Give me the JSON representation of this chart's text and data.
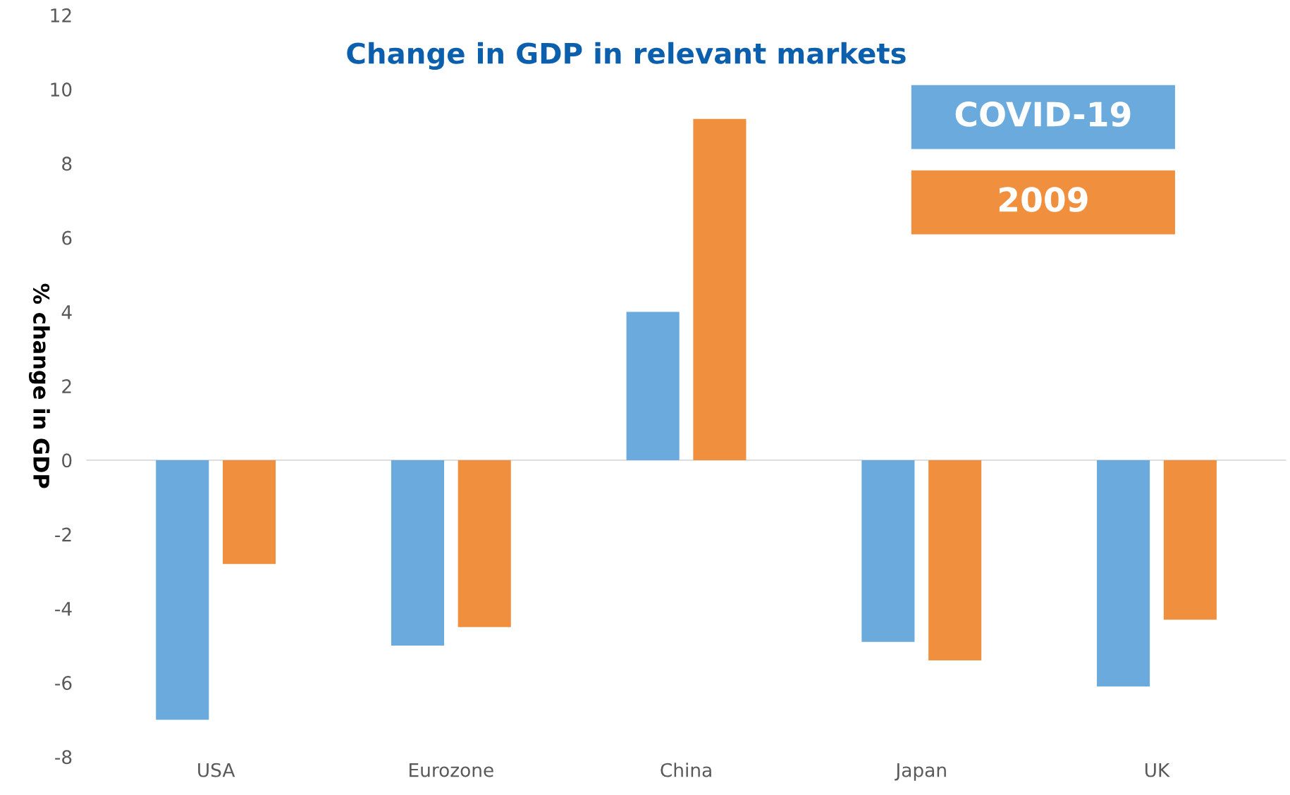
{
  "chart_data": {
    "type": "bar",
    "title": "Change in GDP in relevant markets",
    "ylabel": "% change in GDP",
    "categories": [
      "USA",
      "Eurozone",
      "China",
      "Japan",
      "UK"
    ],
    "series": [
      {
        "name": "COVID-19",
        "color": "#6aaadd",
        "values": [
          -7.0,
          -5.0,
          4.0,
          -4.9,
          -6.1
        ]
      },
      {
        "name": "2009",
        "color": "#f08f3e",
        "values": [
          -2.8,
          -4.5,
          9.2,
          -5.4,
          -4.3
        ]
      }
    ],
    "ylim": [
      -8,
      12
    ],
    "yticks": [
      -8,
      -6,
      -4,
      -2,
      0,
      2,
      4,
      6,
      8,
      10,
      12
    ],
    "ref_lines": [
      {
        "axis": "y",
        "value": 0,
        "color": "#d9d9d9"
      }
    ],
    "grid": false,
    "legend": "top right"
  }
}
